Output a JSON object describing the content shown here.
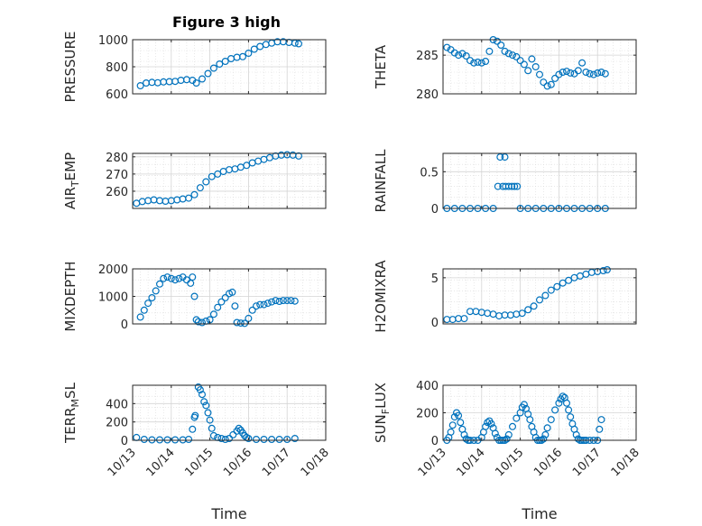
{
  "chart_data": {
    "type": "scatter",
    "title": "Figure 3 high",
    "marker_color": "#0072bd",
    "x_tick_labels": [
      "10/13",
      "10/14",
      "10/15",
      "10/16",
      "10/17",
      "10/18"
    ],
    "x_ticks": [
      13,
      14,
      15,
      16,
      17,
      18
    ],
    "xlim": [
      13,
      18
    ],
    "xlabel": "Time",
    "panels": [
      {
        "id": "pressure",
        "ylabel_main": "PRESSURE",
        "ylabel_sub": "",
        "ylabel_tail": "",
        "ylim": [
          600,
          1000
        ],
        "yticks": [
          600,
          800,
          1000
        ],
        "ytick_labels": [
          "600",
          "800",
          "1000"
        ],
        "x": [
          13.2,
          13.35,
          13.5,
          13.65,
          13.8,
          13.95,
          14.1,
          14.25,
          14.4,
          14.55,
          14.65,
          14.8,
          14.95,
          15.1,
          15.25,
          15.4,
          15.55,
          15.7,
          15.85,
          16.0,
          16.15,
          16.3,
          16.45,
          16.6,
          16.75,
          16.9,
          17.05,
          17.2,
          17.3
        ],
        "y": [
          660,
          680,
          685,
          682,
          688,
          690,
          692,
          700,
          705,
          700,
          680,
          710,
          750,
          790,
          820,
          840,
          860,
          870,
          875,
          900,
          930,
          950,
          965,
          975,
          985,
          985,
          980,
          975,
          970
        ]
      },
      {
        "id": "theta",
        "ylabel_main": "THETA",
        "ylabel_sub": "",
        "ylabel_tail": "",
        "ylim": [
          280,
          287
        ],
        "yticks": [
          280,
          285
        ],
        "ytick_labels": [
          "280",
          "285"
        ],
        "x": [
          13.1,
          13.2,
          13.3,
          13.4,
          13.5,
          13.6,
          13.7,
          13.8,
          13.9,
          14.0,
          14.1,
          14.2,
          14.3,
          14.4,
          14.5,
          14.6,
          14.7,
          14.8,
          14.9,
          15.0,
          15.1,
          15.2,
          15.3,
          15.4,
          15.5,
          15.6,
          15.7,
          15.8,
          15.9,
          16.0,
          16.1,
          16.2,
          16.3,
          16.4,
          16.5,
          16.6,
          16.7,
          16.8,
          16.9,
          17.0,
          17.1,
          17.2
        ],
        "y": [
          286.0,
          285.7,
          285.3,
          285.0,
          285.2,
          284.9,
          284.3,
          284.0,
          284.1,
          284.0,
          284.2,
          285.5,
          287.0,
          286.8,
          286.3,
          285.5,
          285.2,
          285.0,
          284.8,
          284.3,
          283.8,
          283.0,
          284.5,
          283.5,
          282.5,
          281.5,
          281.0,
          281.2,
          282.0,
          282.5,
          282.8,
          282.9,
          282.7,
          282.6,
          283.0,
          284.0,
          282.8,
          282.6,
          282.5,
          282.7,
          282.8,
          282.6
        ]
      },
      {
        "id": "airtemp",
        "ylabel_main": "AIR",
        "ylabel_sub": "T",
        "ylabel_tail": "EMP",
        "ylim": [
          250,
          282
        ],
        "yticks": [
          260,
          270,
          280
        ],
        "ytick_labels": [
          "260",
          "270",
          "280"
        ],
        "x": [
          13.1,
          13.25,
          13.4,
          13.55,
          13.7,
          13.85,
          14.0,
          14.15,
          14.3,
          14.45,
          14.6,
          14.75,
          14.9,
          15.05,
          15.2,
          15.35,
          15.5,
          15.65,
          15.8,
          15.95,
          16.1,
          16.25,
          16.4,
          16.55,
          16.7,
          16.85,
          17.0,
          17.15,
          17.3
        ],
        "y": [
          253,
          254,
          254.5,
          255,
          254.5,
          254.2,
          254.5,
          255,
          255.5,
          256,
          258,
          262,
          265.5,
          268.5,
          270,
          271.5,
          272.5,
          273,
          274,
          275,
          276.5,
          277.5,
          278.5,
          279.5,
          280.5,
          281,
          281.2,
          281,
          280.5
        ]
      },
      {
        "id": "rainfall",
        "ylabel_main": "RAINFALL",
        "ylabel_sub": "",
        "ylabel_tail": "",
        "ylim": [
          0,
          0.75
        ],
        "yticks": [
          0,
          0.5
        ],
        "ytick_labels": [
          "0",
          "0.5"
        ],
        "x": [
          13.1,
          13.3,
          13.5,
          13.7,
          13.9,
          14.1,
          14.3,
          14.42,
          14.48,
          14.55,
          14.6,
          14.62,
          14.7,
          14.78,
          14.85,
          14.92,
          15.0,
          15.2,
          15.4,
          15.6,
          15.8,
          16.0,
          16.2,
          16.4,
          16.6,
          16.8,
          17.0,
          17.2
        ],
        "y": [
          0,
          0,
          0,
          0,
          0,
          0,
          0,
          0.3,
          0.7,
          0.3,
          0.7,
          0.3,
          0.3,
          0.3,
          0.3,
          0.3,
          0,
          0,
          0,
          0,
          0,
          0,
          0,
          0,
          0,
          0,
          0,
          0
        ]
      },
      {
        "id": "mixdepth",
        "ylabel_main": "MIXDEPTH",
        "ylabel_sub": "",
        "ylabel_tail": "",
        "ylim": [
          0,
          2000
        ],
        "yticks": [
          0,
          1000,
          2000
        ],
        "ytick_labels": [
          "0",
          "1000",
          "2000"
        ],
        "x": [
          13.2,
          13.3,
          13.4,
          13.5,
          13.6,
          13.7,
          13.8,
          13.9,
          14.0,
          14.1,
          14.2,
          14.3,
          14.4,
          14.5,
          14.55,
          14.6,
          14.65,
          14.7,
          14.8,
          14.9,
          15.0,
          15.1,
          15.2,
          15.3,
          15.4,
          15.5,
          15.58,
          15.65,
          15.7,
          15.8,
          15.9,
          16.0,
          16.1,
          16.2,
          16.3,
          16.4,
          16.5,
          16.6,
          16.7,
          16.8,
          16.9,
          17.0,
          17.1,
          17.2
        ],
        "y": [
          250,
          500,
          750,
          950,
          1200,
          1450,
          1650,
          1700,
          1650,
          1600,
          1650,
          1700,
          1600,
          1480,
          1700,
          1000,
          150,
          80,
          50,
          100,
          150,
          350,
          600,
          800,
          950,
          1100,
          1150,
          650,
          50,
          30,
          20,
          200,
          500,
          650,
          700,
          700,
          750,
          800,
          850,
          820,
          850,
          850,
          850,
          830
        ]
      },
      {
        "id": "h2omixra",
        "ylabel_main": "H2OMIXRA",
        "ylabel_sub": "",
        "ylabel_tail": "",
        "ylim": [
          -0.2,
          6
        ],
        "yticks": [
          0,
          5
        ],
        "ytick_labels": [
          "0",
          "5"
        ],
        "x": [
          13.1,
          13.25,
          13.4,
          13.55,
          13.7,
          13.85,
          14.0,
          14.15,
          14.3,
          14.45,
          14.6,
          14.75,
          14.9,
          15.05,
          15.2,
          15.35,
          15.5,
          15.65,
          15.8,
          15.95,
          16.1,
          16.25,
          16.4,
          16.55,
          16.7,
          16.85,
          17.0,
          17.15,
          17.25
        ],
        "y": [
          0.3,
          0.3,
          0.4,
          0.4,
          1.2,
          1.2,
          1.1,
          1.0,
          0.9,
          0.7,
          0.8,
          0.8,
          0.9,
          1.0,
          1.4,
          1.8,
          2.5,
          3.0,
          3.6,
          4.0,
          4.4,
          4.7,
          5.0,
          5.2,
          5.4,
          5.6,
          5.7,
          5.8,
          5.9
        ]
      },
      {
        "id": "terrmsl",
        "ylabel_main": "TERR",
        "ylabel_sub": "M",
        "ylabel_tail": "SL",
        "ylim": [
          0,
          600
        ],
        "yticks": [
          0,
          200,
          400
        ],
        "ytick_labels": [
          "0",
          "200",
          "400"
        ],
        "x": [
          13.1,
          13.3,
          13.5,
          13.7,
          13.9,
          14.1,
          14.3,
          14.45,
          14.55,
          14.6,
          14.62,
          14.7,
          14.75,
          14.8,
          14.85,
          14.9,
          14.95,
          15.0,
          15.05,
          15.1,
          15.2,
          15.3,
          15.4,
          15.5,
          15.6,
          15.7,
          15.75,
          15.8,
          15.85,
          15.9,
          15.95,
          16.0,
          16.2,
          16.4,
          16.6,
          16.8,
          17.0,
          17.2
        ],
        "y": [
          30,
          10,
          5,
          5,
          5,
          5,
          5,
          10,
          120,
          250,
          270,
          580,
          550,
          500,
          420,
          380,
          300,
          220,
          130,
          50,
          30,
          20,
          10,
          20,
          60,
          100,
          130,
          110,
          80,
          50,
          30,
          20,
          10,
          10,
          10,
          10,
          10,
          20
        ]
      },
      {
        "id": "sunflux",
        "ylabel_main": "SUN",
        "ylabel_sub": "F",
        "ylabel_tail": "LUX",
        "ylim": [
          0,
          400
        ],
        "yticks": [
          0,
          200,
          400
        ],
        "ytick_labels": [
          "0",
          "200",
          "400"
        ],
        "x": [
          13.1,
          13.15,
          13.2,
          13.25,
          13.3,
          13.35,
          13.4,
          13.45,
          13.5,
          13.55,
          13.6,
          13.65,
          13.7,
          13.8,
          13.9,
          14.0,
          14.05,
          14.1,
          14.15,
          14.2,
          14.25,
          14.3,
          14.35,
          14.4,
          14.45,
          14.5,
          14.55,
          14.6,
          14.65,
          14.7,
          14.8,
          14.9,
          15.0,
          15.05,
          15.1,
          15.15,
          15.2,
          15.25,
          15.3,
          15.35,
          15.4,
          15.45,
          15.5,
          15.55,
          15.6,
          15.65,
          15.7,
          15.8,
          15.9,
          16.0,
          16.05,
          16.1,
          16.15,
          16.2,
          16.25,
          16.3,
          16.35,
          16.4,
          16.45,
          16.5,
          16.55,
          16.6,
          16.65,
          16.7,
          16.8,
          16.9,
          17.0,
          17.05,
          17.1
        ],
        "y": [
          0,
          20,
          60,
          110,
          170,
          200,
          180,
          130,
          80,
          40,
          10,
          0,
          0,
          0,
          0,
          20,
          60,
          100,
          130,
          140,
          120,
          90,
          50,
          20,
          0,
          0,
          0,
          0,
          10,
          40,
          100,
          160,
          200,
          240,
          260,
          230,
          190,
          150,
          100,
          60,
          20,
          0,
          0,
          0,
          10,
          40,
          90,
          150,
          220,
          270,
          300,
          320,
          310,
          270,
          220,
          170,
          120,
          80,
          40,
          10,
          0,
          0,
          0,
          0,
          0,
          0,
          0,
          80,
          150
        ]
      }
    ]
  }
}
